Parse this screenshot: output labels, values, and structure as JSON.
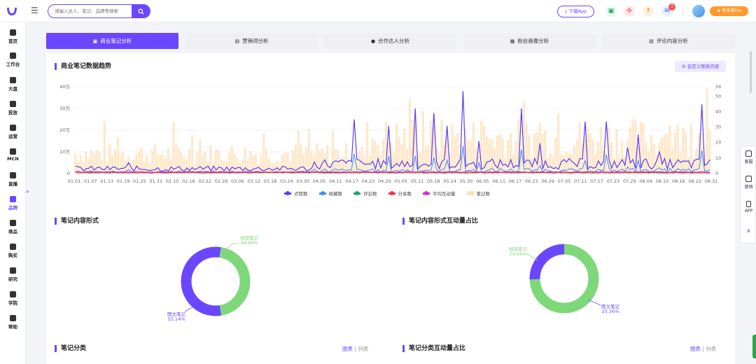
{
  "header": {
    "search_placeholder": "请输入达人、笔记、品牌等搜索",
    "download_app": "下载App",
    "notif_count": "3",
    "pro_label": "尊享版Pro"
  },
  "sidebar": {
    "items": [
      {
        "label": "首页",
        "icon": "home-icon"
      },
      {
        "label": "工作台",
        "icon": "workbench-icon"
      },
      {
        "label": "大盘",
        "icon": "pie-icon"
      },
      {
        "label": "投放",
        "icon": "folder-icon"
      },
      {
        "label": "运营",
        "icon": "chat-icon"
      },
      {
        "label": "MCN",
        "icon": "document-icon"
      },
      {
        "label": "直播",
        "icon": "video-icon"
      },
      {
        "label": "品牌",
        "icon": "brand-icon"
      },
      {
        "label": "商品",
        "icon": "bag-icon"
      },
      {
        "label": "购买",
        "icon": "cart-icon"
      },
      {
        "label": "研究",
        "icon": "flask-icon"
      },
      {
        "label": "学院",
        "icon": "graduation-icon"
      },
      {
        "label": "帮助",
        "icon": "help-icon"
      }
    ],
    "active_index": 7
  },
  "tabs": [
    {
      "label": "商业笔记分析",
      "active": true
    },
    {
      "label": "营销词分析",
      "active": false
    },
    {
      "label": "合作达人分析",
      "active": false
    },
    {
      "label": "粉丝画像分析",
      "active": false
    },
    {
      "label": "评论内容分析",
      "active": false
    }
  ],
  "trend": {
    "title": "商业笔记数据趋势",
    "custom_button": "自定义图表内容"
  },
  "chart_data": [
    {
      "type": "line",
      "title": "商业笔记数据趋势",
      "y_left_ticks": [
        "0",
        "10万",
        "20万",
        "30万",
        "40万"
      ],
      "y_right_ticks": [
        "0",
        "10",
        "20",
        "30",
        "40",
        "50",
        "56"
      ],
      "x_tick_labels": [
        "01.01",
        "01.07",
        "01.13",
        "01.19",
        "01.25",
        "01.31",
        "02.10",
        "02.16",
        "02.22",
        "02.28",
        "03.06",
        "03.12",
        "03.18",
        "03.24",
        "03.30",
        "04.05",
        "04.11",
        "04.17",
        "04.23",
        "04.29",
        "05.05",
        "05.11",
        "05.18",
        "05.24",
        "05.30",
        "06.05",
        "06.11",
        "06.17",
        "06.23",
        "06.29",
        "07.05",
        "07.11",
        "07.17",
        "07.23",
        "07.29",
        "08.04",
        "08.10",
        "08.16",
        "08.22",
        "08.31"
      ],
      "legend": [
        "点赞数",
        "收藏数",
        "评论数",
        "分享数",
        "平均互动量",
        "笔记数"
      ],
      "colors": {
        "likes": "#5b3df5",
        "collects": "#3a8df5",
        "comments": "#22a06b",
        "shares": "#f0304a",
        "avg": "#d02ad6",
        "notes": "#fde0b8"
      }
    },
    {
      "type": "pie",
      "title": "笔记内容形式",
      "slices": [
        {
          "name": "视频笔记",
          "value": 44.86,
          "label": "44.86%",
          "color": "#7ed87a"
        },
        {
          "name": "图文笔记",
          "value": 55.14,
          "label": "55.14%",
          "color": "#6b46ff"
        }
      ]
    },
    {
      "type": "pie",
      "title": "笔记内容形式互动量占比",
      "slices": [
        {
          "name": "视频笔记",
          "value": 74.64,
          "label": "74.64%",
          "color": "#7ed87a"
        },
        {
          "name": "图文笔记",
          "value": 25.36,
          "label": "25.36%",
          "color": "#6b46ff"
        }
      ]
    }
  ],
  "sections": {
    "form_title": "笔记内容形式",
    "form_interact_title": "笔记内容形式互动量占比",
    "category_title": "笔记分类",
    "category_interact_title": "笔记分类互动量占比",
    "view_chart": "图表",
    "view_list": "列表"
  },
  "float": {
    "service": "客服",
    "marketing": "营销",
    "app": "APP"
  }
}
